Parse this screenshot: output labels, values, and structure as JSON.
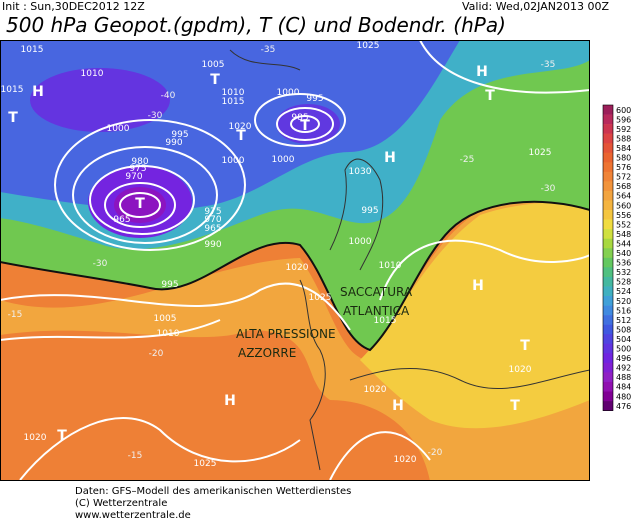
{
  "header": {
    "init": "Init : Sun,30DEC2012 12Z",
    "valid": "Valid: Wed,02JAN2013 00Z",
    "title": "500 hPa Geopot.(gpdm), T (C) und Bodendr. (hPa)"
  },
  "color_scale": {
    "values": [
      600,
      596,
      592,
      588,
      584,
      580,
      576,
      572,
      568,
      564,
      560,
      556,
      552,
      548,
      544,
      540,
      536,
      532,
      528,
      524,
      520,
      516,
      512,
      508,
      504,
      500,
      496,
      492,
      488,
      484,
      480,
      476
    ],
    "colors": [
      "#9c1f5a",
      "#b82a5c",
      "#cc3550",
      "#dc4444",
      "#e45438",
      "#ea6430",
      "#ee7432",
      "#f08438",
      "#f2943c",
      "#f2a440",
      "#f4b440",
      "#f4c640",
      "#f0dc40",
      "#d0e040",
      "#a8d840",
      "#84d050",
      "#64c860",
      "#50c080",
      "#44b8a0",
      "#40b0c0",
      "#40a0d8",
      "#408ae0",
      "#4070e0",
      "#4058e0",
      "#5044e0",
      "#6034e0",
      "#7024e0",
      "#8020d4",
      "#9020c4",
      "#9010b0",
      "#800094",
      "#600070"
    ]
  },
  "annotations": [
    [
      "SACCATURA",
      "ATLANTICA"
    ],
    [
      "ALTA PRESSIONE",
      "AZZORRE"
    ]
  ],
  "map_labels": [
    "1015",
    "1015",
    "H",
    "T",
    "1010",
    "1005",
    "T",
    "1010",
    "1015",
    "1000",
    "995",
    "985",
    "T",
    "1000",
    "995",
    "990",
    "1020",
    "T",
    "980",
    "975",
    "970",
    "965",
    "T",
    "975",
    "970",
    "965",
    "990",
    "1000",
    "1000",
    "995",
    "1000",
    "1010",
    "1020",
    "995",
    "1025",
    "1005",
    "1015",
    "1010",
    "1020",
    "1020",
    "T",
    "H",
    "H",
    "T",
    "1025",
    "1020",
    "1025",
    "H",
    "1025",
    "T",
    "H",
    "1030",
    "1020",
    "T",
    "H",
    "-35",
    "-30",
    "-30",
    "-25",
    "-30",
    "-20",
    "-15",
    "-15",
    "-20",
    "-40",
    "-35"
  ],
  "footer": [
    "Daten: GFS–Modell des amerikanischen Wetterdienstes",
    "(C) Wetterzentrale",
    "www.wetterzentrale.de"
  ]
}
